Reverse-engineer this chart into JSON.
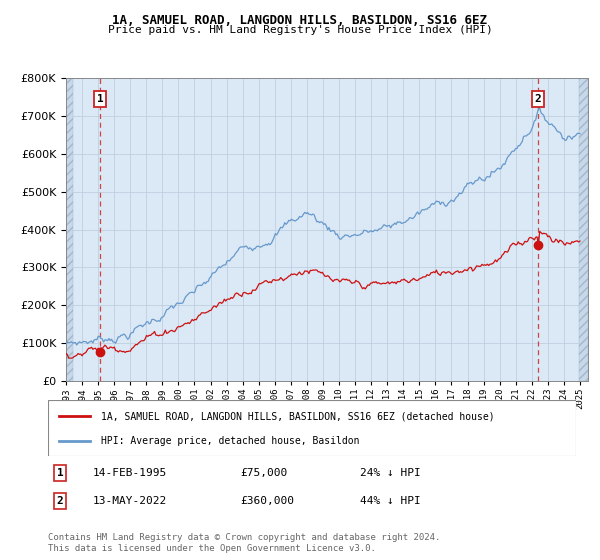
{
  "title": "1A, SAMUEL ROAD, LANGDON HILLS, BASILDON, SS16 6EZ",
  "subtitle": "Price paid vs. HM Land Registry's House Price Index (HPI)",
  "ylim": [
    0,
    800000
  ],
  "yticks": [
    0,
    100000,
    200000,
    300000,
    400000,
    500000,
    600000,
    700000,
    800000
  ],
  "xlim_start": 1993.0,
  "xlim_end": 2025.5,
  "bg_color": "#dbe8f5",
  "grid_color": "#c0cfe0",
  "sale1_year": 1995.12,
  "sale1_price": 75000,
  "sale2_year": 2022.37,
  "sale2_price": 360000,
  "sale1_label": "1",
  "sale2_label": "2",
  "legend_label1": "1A, SAMUEL ROAD, LANGDON HILLS, BASILDON, SS16 6EZ (detached house)",
  "legend_label2": "HPI: Average price, detached house, Basildon",
  "footer": "Contains HM Land Registry data © Crown copyright and database right 2024.\nThis data is licensed under the Open Government Licence v3.0.",
  "red_line_color": "#cc1111",
  "blue_line_color": "#6699cc",
  "sale_marker_color": "#cc1111",
  "dashed_line_color": "#cc4444",
  "box_edge_color": "#cc2222"
}
